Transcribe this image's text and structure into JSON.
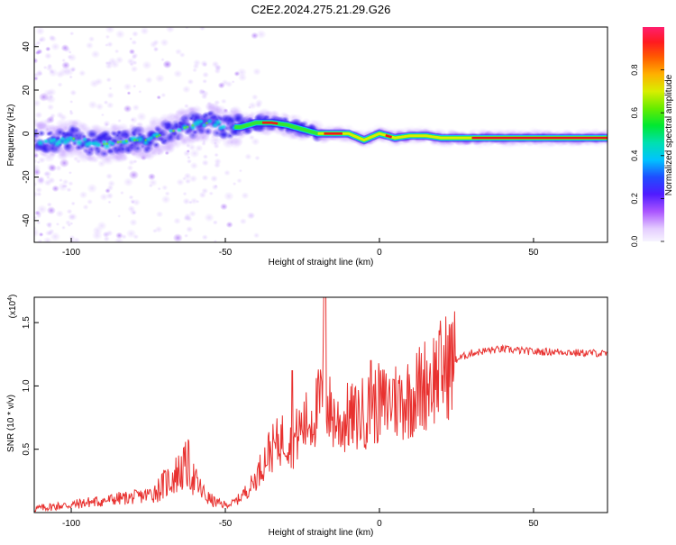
{
  "figure_title": "C2E2.2024.275.21.29.G26",
  "chart_data": [
    {
      "type": "heatmap",
      "title": "C2E2.2024.275.21.29.G26",
      "xlabel": "Height of straight line (km)",
      "ylabel": "Frequency (Hz)",
      "xlim": [
        -112,
        74
      ],
      "ylim": [
        -50,
        49
      ],
      "xticks": [
        -100,
        -50,
        0,
        50
      ],
      "yticks": [
        -40,
        -20,
        0,
        20,
        40
      ],
      "grid": false,
      "ridge_frequency": {
        "x": [
          -112,
          -105,
          -100,
          -95,
          -90,
          -85,
          -80,
          -75,
          -70,
          -65,
          -60,
          -55,
          -50,
          -45,
          -40,
          -35,
          -30,
          -25,
          -20,
          -15,
          -10,
          -5,
          0,
          5,
          10,
          15,
          20,
          30,
          40,
          50,
          60,
          74
        ],
        "y": [
          -3,
          -4,
          -2,
          -4,
          -5,
          -4,
          -3,
          -3,
          0,
          2,
          4,
          5,
          3,
          3,
          5,
          5,
          4,
          2,
          0,
          0,
          0,
          -3,
          0,
          -2,
          -1,
          -1,
          -2,
          -2,
          -2,
          -2,
          -2,
          -2
        ]
      },
      "colorbar": {
        "label": "Normalized spectral amplitude",
        "ticks": [
          "0.0",
          "0.2",
          "0.4",
          "0.6",
          "0.8"
        ],
        "range": [
          0,
          1
        ]
      }
    },
    {
      "type": "line",
      "xlabel": "Height of straight line (km)",
      "ylabel": "SNR (10 * v/v)",
      "exponent_label": "(x10",
      "exponent_power": "4",
      "exponent_close": ")",
      "xlim": [
        -112,
        74
      ],
      "ylim": [
        0,
        1.7
      ],
      "xticks": [
        -100,
        -50,
        0,
        50
      ],
      "yticks": [
        "0.5",
        "1.0",
        "1.5"
      ],
      "ytick_values": [
        0.5,
        1.0,
        1.5
      ],
      "grid": false,
      "series": [
        {
          "color": "#e8312f",
          "x": [
            -112,
            -105,
            -100,
            -95,
            -90,
            -85,
            -80,
            -75,
            -72,
            -70,
            -68,
            -66,
            -64,
            -62,
            -60,
            -58,
            -56,
            -54,
            -52,
            -50,
            -48,
            -46,
            -44,
            -42,
            -40,
            -38,
            -36,
            -34,
            -32,
            -30,
            -28,
            -26,
            -24,
            -22,
            -20,
            -19,
            -18,
            -17,
            -16,
            -14,
            -12,
            -10,
            -8,
            -6,
            -4,
            -2,
            0,
            2,
            4,
            6,
            8,
            10,
            12,
            14,
            16,
            18,
            20,
            22,
            24,
            26,
            28,
            30,
            35,
            40,
            45,
            50,
            55,
            60,
            65,
            70,
            74
          ],
          "y": [
            0.03,
            0.05,
            0.06,
            0.08,
            0.09,
            0.11,
            0.12,
            0.14,
            0.18,
            0.22,
            0.26,
            0.3,
            0.34,
            0.38,
            0.25,
            0.18,
            0.12,
            0.09,
            0.07,
            0.06,
            0.07,
            0.1,
            0.15,
            0.2,
            0.28,
            0.38,
            0.48,
            0.52,
            0.58,
            0.6,
            0.55,
            0.65,
            0.7,
            0.75,
            0.82,
            0.9,
            1.0,
            0.85,
            0.8,
            0.72,
            0.7,
            0.76,
            0.74,
            0.78,
            0.8,
            0.84,
            0.86,
            0.85,
            0.9,
            0.88,
            0.9,
            0.92,
            0.95,
            1.0,
            1.05,
            1.08,
            1.12,
            1.16,
            1.19,
            1.22,
            1.24,
            1.26,
            1.28,
            1.29,
            1.28,
            1.27,
            1.27,
            1.27,
            1.26,
            1.26,
            1.25
          ]
        }
      ]
    }
  ]
}
